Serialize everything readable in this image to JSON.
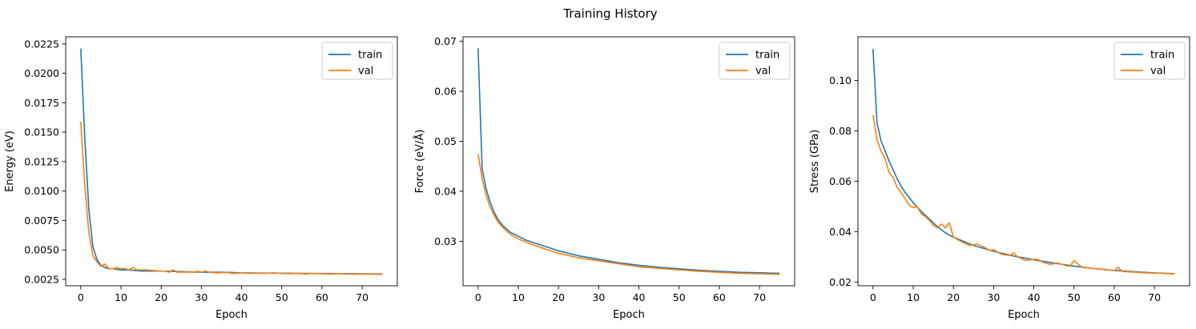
{
  "figure": {
    "title": "Training History"
  },
  "colors": {
    "train": "#1f77b4",
    "val": "#ff7f0e"
  },
  "chart_data": [
    {
      "type": "line",
      "xlabel": "Epoch",
      "ylabel": "Energy (eV)",
      "xlim": [
        -3.75,
        78.75
      ],
      "ylim": [
        0.00195,
        0.0231
      ],
      "xticks": [
        0,
        10,
        20,
        30,
        40,
        50,
        60,
        70
      ],
      "yticks": [
        0.0025,
        0.005,
        0.0075,
        0.01,
        0.0125,
        0.015,
        0.0175,
        0.02,
        0.0225
      ],
      "ytick_labels": [
        "0.0025",
        "0.0050",
        "0.0075",
        "0.0100",
        "0.0125",
        "0.0150",
        "0.0175",
        "0.0200",
        "0.0225"
      ],
      "legend": "top-right",
      "series": [
        {
          "name": "train",
          "x": [
            0,
            1,
            2,
            3,
            4,
            5,
            6,
            7,
            8,
            10,
            12,
            15,
            20,
            25,
            30,
            35,
            40,
            45,
            50,
            55,
            60,
            65,
            70,
            75
          ],
          "y": [
            0.0221,
            0.0145,
            0.0085,
            0.0053,
            0.0042,
            0.0037,
            0.0035,
            0.0034,
            0.0034,
            0.0033,
            0.0033,
            0.0032,
            0.0032,
            0.00315,
            0.0031,
            0.0031,
            0.00305,
            0.00303,
            0.00302,
            0.003,
            0.00299,
            0.00298,
            0.00297,
            0.00296
          ]
        },
        {
          "name": "val",
          "x": [
            0,
            1,
            2,
            3,
            4,
            5,
            6,
            7,
            8,
            9,
            10,
            11,
            12,
            13,
            14,
            15,
            16,
            18,
            20,
            21,
            22,
            23,
            24,
            26,
            28,
            29,
            30,
            31,
            32,
            34,
            36,
            38,
            40,
            42,
            44,
            46,
            48,
            50,
            52,
            54,
            56,
            58,
            60,
            62,
            64,
            66,
            68,
            70,
            72,
            75
          ],
          "y": [
            0.0159,
            0.0105,
            0.0065,
            0.0045,
            0.004,
            0.0036,
            0.0038,
            0.0034,
            0.0034,
            0.0035,
            0.0034,
            0.0034,
            0.0033,
            0.0035,
            0.0033,
            0.0033,
            0.0033,
            0.00325,
            0.0032,
            0.0032,
            0.0031,
            0.0033,
            0.0031,
            0.00312,
            0.0031,
            0.00318,
            0.0031,
            0.0032,
            0.0031,
            0.00305,
            0.00308,
            0.003,
            0.00305,
            0.003,
            0.00302,
            0.003,
            0.00305,
            0.003,
            0.00298,
            0.003,
            0.00296,
            0.003,
            0.00297,
            0.00295,
            0.00298,
            0.00295,
            0.00294,
            0.00295,
            0.00293,
            0.00293
          ]
        }
      ]
    },
    {
      "type": "line",
      "xlabel": "Epoch",
      "ylabel": "Force (eV/Å)",
      "xlim": [
        -3.75,
        78.75
      ],
      "ylim": [
        0.0211,
        0.0709
      ],
      "xticks": [
        0,
        10,
        20,
        30,
        40,
        50,
        60,
        70
      ],
      "yticks": [
        0.03,
        0.04,
        0.05,
        0.06,
        0.07
      ],
      "ytick_labels": [
        "0.03",
        "0.04",
        "0.05",
        "0.06",
        "0.07"
      ],
      "legend": "top-right",
      "series": [
        {
          "name": "train",
          "x": [
            0,
            1,
            2,
            3,
            4,
            5,
            6,
            7,
            8,
            10,
            12,
            15,
            20,
            25,
            30,
            35,
            40,
            45,
            50,
            55,
            60,
            65,
            70,
            75
          ],
          "y": [
            0.0686,
            0.0445,
            0.0405,
            0.0378,
            0.0358,
            0.0343,
            0.0333,
            0.0325,
            0.0318,
            0.031,
            0.0302,
            0.0294,
            0.0281,
            0.0271,
            0.0264,
            0.0257,
            0.0252,
            0.0248,
            0.0245,
            0.0242,
            0.024,
            0.0238,
            0.0237,
            0.0236
          ]
        },
        {
          "name": "val",
          "x": [
            0,
            1,
            2,
            3,
            4,
            5,
            6,
            7,
            8,
            10,
            12,
            15,
            18,
            20,
            25,
            30,
            35,
            40,
            45,
            50,
            55,
            60,
            65,
            70,
            75
          ],
          "y": [
            0.0475,
            0.0425,
            0.0392,
            0.0368,
            0.0352,
            0.0338,
            0.0329,
            0.0321,
            0.0314,
            0.0305,
            0.0298,
            0.0289,
            0.0281,
            0.0276,
            0.0267,
            0.0261,
            0.0255,
            0.0249,
            0.0246,
            0.0243,
            0.024,
            0.0238,
            0.0236,
            0.0235,
            0.0234
          ]
        }
      ]
    },
    {
      "type": "line",
      "xlabel": "Epoch",
      "ylabel": "Stress (GPa)",
      "xlim": [
        -3.75,
        78.75
      ],
      "ylim": [
        0.0185,
        0.1173
      ],
      "xticks": [
        0,
        10,
        20,
        30,
        40,
        50,
        60,
        70
      ],
      "yticks": [
        0.02,
        0.04,
        0.06,
        0.08,
        0.1
      ],
      "ytick_labels": [
        "0.02",
        "0.04",
        "0.06",
        "0.08",
        "0.10"
      ],
      "legend": "top-right",
      "series": [
        {
          "name": "train",
          "x": [
            0,
            1,
            2,
            3,
            4,
            5,
            6,
            7,
            8,
            10,
            12,
            14,
            16,
            18,
            20,
            25,
            30,
            35,
            40,
            45,
            50,
            55,
            60,
            65,
            70,
            75
          ],
          "y": [
            0.1125,
            0.083,
            0.076,
            0.072,
            0.068,
            0.0645,
            0.061,
            0.058,
            0.0555,
            0.0515,
            0.048,
            0.045,
            0.042,
            0.0395,
            0.0378,
            0.0345,
            0.0322,
            0.0303,
            0.0288,
            0.0275,
            0.0263,
            0.0253,
            0.0246,
            0.0241,
            0.0236,
            0.0233
          ]
        },
        {
          "name": "val",
          "x": [
            0,
            1,
            2,
            3,
            4,
            5,
            6,
            7,
            8,
            9,
            10,
            11,
            12,
            13,
            14,
            15,
            16,
            17,
            18,
            19,
            20,
            22,
            24,
            26,
            28,
            29,
            30,
            32,
            34,
            35,
            36,
            38,
            40,
            41,
            42,
            44,
            46,
            48,
            49,
            50,
            52,
            54,
            56,
            58,
            60,
            61,
            62,
            64,
            66,
            68,
            70,
            72,
            75
          ],
          "y": [
            0.0862,
            0.0765,
            0.072,
            0.069,
            0.0635,
            0.0615,
            0.0575,
            0.0555,
            0.053,
            0.0505,
            0.0495,
            0.05,
            0.047,
            0.046,
            0.0445,
            0.0425,
            0.0415,
            0.043,
            0.0415,
            0.0435,
            0.0378,
            0.036,
            0.0345,
            0.035,
            0.0335,
            0.0325,
            0.0328,
            0.031,
            0.0305,
            0.0315,
            0.03,
            0.0285,
            0.029,
            0.029,
            0.028,
            0.027,
            0.0275,
            0.0265,
            0.0262,
            0.0285,
            0.0258,
            0.0255,
            0.0252,
            0.025,
            0.0245,
            0.0258,
            0.0242,
            0.024,
            0.0238,
            0.0236,
            0.0235,
            0.0234,
            0.0232
          ]
        }
      ]
    }
  ]
}
